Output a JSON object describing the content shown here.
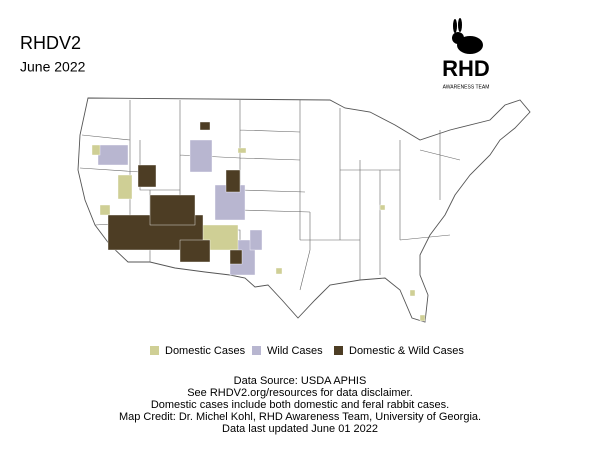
{
  "header": {
    "title": "RHDV2",
    "subtitle": "June 2022"
  },
  "logo": {
    "text": "RHD",
    "caption": "AWARENESS TEAM"
  },
  "legend": [
    {
      "label": "Domestic Cases",
      "color": "#cfcf95"
    },
    {
      "label": "Wild Cases",
      "color": "#b8b6d0"
    },
    {
      "label": "Domestic & Wild Cases",
      "color": "#4d3d24"
    }
  ],
  "footer": [
    "Data Source: USDA APHIS",
    "See RHDV2.org/resources for data disclaimer.",
    "Domestic cases include both domestic and feral rabbit cases.",
    "Map Credit: Dr. Michel Kohl, RHD Awareness Team, University of Georgia.",
    "Data last updated June 01 2022"
  ]
}
